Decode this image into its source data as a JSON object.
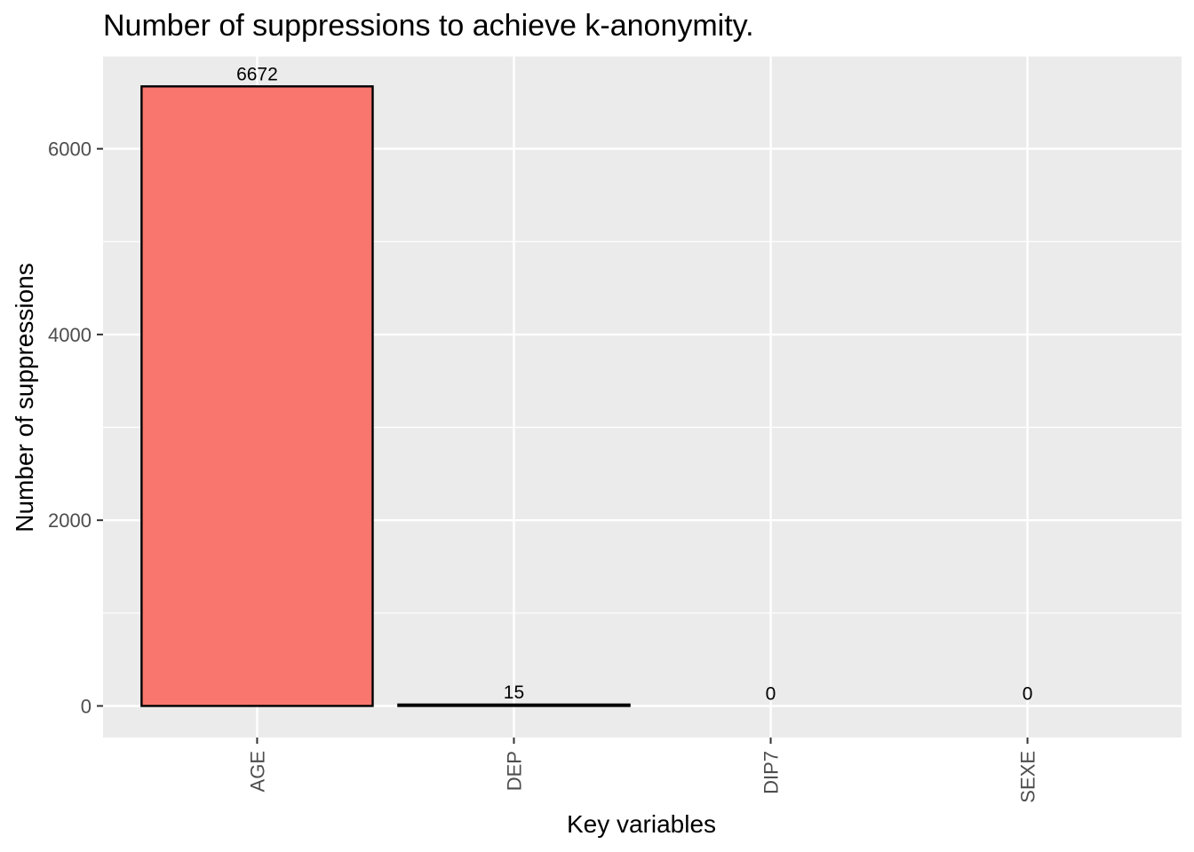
{
  "chart_data": {
    "type": "bar",
    "title": "Number of suppressions to achieve k-anonymity.",
    "xlabel": "Key variables",
    "ylabel": "Number of suppressions",
    "categories": [
      "AGE",
      "DEP",
      "DIP7",
      "SEXE"
    ],
    "values": [
      6672,
      15,
      0,
      0
    ],
    "data_labels": [
      "6672",
      "15",
      "0",
      "0"
    ],
    "ylim": [
      -340,
      7000
    ],
    "yticks": [
      0,
      2000,
      4000,
      6000
    ],
    "ytick_labels": [
      "0",
      "2000",
      "4000",
      "6000"
    ],
    "grid": true,
    "legend": "none",
    "colors": {
      "panel": "#ebebeb",
      "grid": "#ffffff",
      "bar_fill": "#f8766d",
      "bar_outline": "#000000",
      "tick": "#333333"
    }
  }
}
